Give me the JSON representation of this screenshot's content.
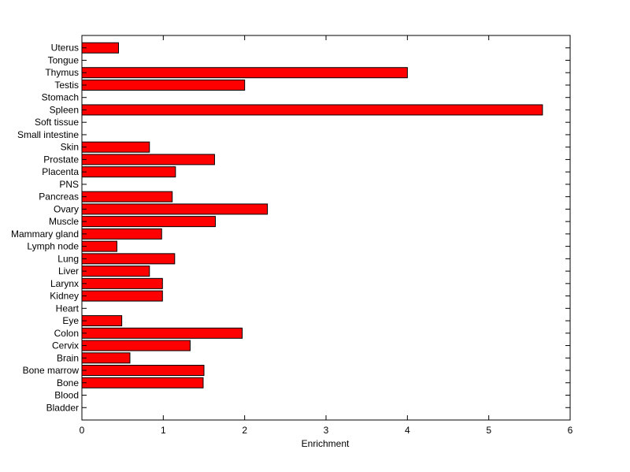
{
  "chart_data": {
    "type": "bar",
    "orientation": "horizontal",
    "xlabel": "Enrichment",
    "ylabel": "",
    "xlim": [
      0,
      6
    ],
    "xticks": [
      "0",
      "1",
      "2",
      "3",
      "4",
      "5",
      "6"
    ],
    "grid": false,
    "bar_color": "#ff0000",
    "bar_edge_color": "#000000",
    "categories": [
      "Uterus",
      "Tongue",
      "Thymus",
      "Testis",
      "Stomach",
      "Spleen",
      "Soft tissue",
      "Small intestine",
      "Skin",
      "Prostate",
      "Placenta",
      "PNS",
      "Pancreas",
      "Ovary",
      "Muscle",
      "Mammary gland",
      "Lymph node",
      "Lung",
      "Liver",
      "Larynx",
      "Kidney",
      "Heart",
      "Eye",
      "Colon",
      "Cervix",
      "Brain",
      "Bone marrow",
      "Bone",
      "Blood",
      "Bladder"
    ],
    "values": [
      0.45,
      0,
      4.0,
      2.0,
      0,
      5.66,
      0,
      0,
      0.83,
      1.63,
      1.15,
      0,
      1.11,
      2.28,
      1.64,
      0.98,
      0.43,
      1.14,
      0.83,
      0.99,
      0.99,
      0,
      0.49,
      1.97,
      1.33,
      0.59,
      1.5,
      1.49,
      0,
      0
    ]
  }
}
